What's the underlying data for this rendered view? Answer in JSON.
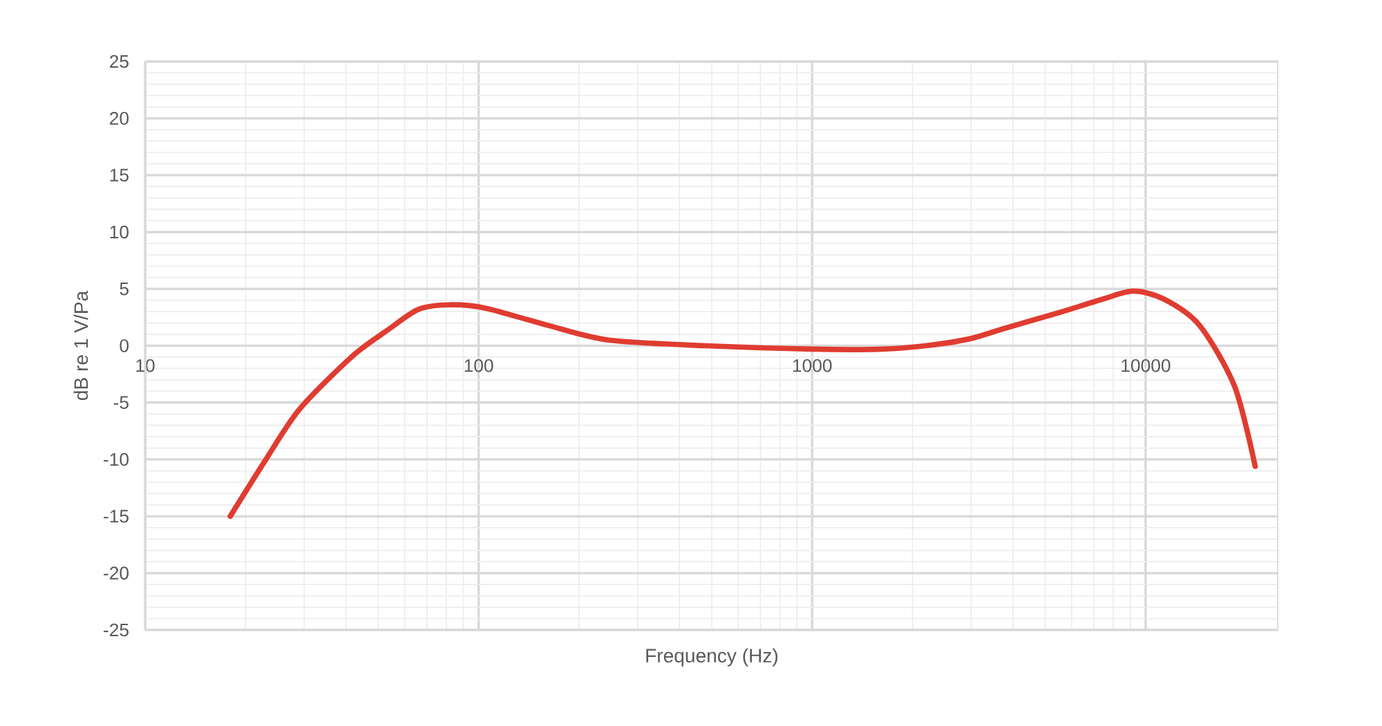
{
  "chart_data": {
    "type": "line",
    "xlabel": "Frequency (Hz)",
    "ylabel": "dB re 1 V/Pa",
    "log": "x",
    "grid": true,
    "marker": "none",
    "line_style": "solid",
    "xlim": [
      10,
      25000
    ],
    "ylim": [
      -25,
      25
    ],
    "xticks": [
      10,
      100,
      1000,
      10000
    ],
    "yticks": [
      -25,
      -20,
      -15,
      -10,
      -5,
      0,
      5,
      10,
      15,
      20,
      25
    ],
    "series": [
      {
        "color": "#e03c31",
        "x": [
          18,
          22.8,
          29,
          41.9,
          53.5,
          66,
          82,
          105,
          161,
          245,
          479,
          1000,
          1624,
          2190,
          2960,
          3800,
          5480,
          7440,
          9190,
          11350,
          14500,
          18500,
          21300
        ],
        "values": [
          -15,
          -10.2,
          -5.6,
          -0.9,
          1.4,
          3.2,
          3.6,
          3.3,
          1.8,
          0.5,
          0,
          -0.3,
          -0.3,
          0,
          0.6,
          1.55,
          2.9,
          4.1,
          4.8,
          4.1,
          1.8,
          -3.6,
          -10.6
        ]
      }
    ]
  }
}
